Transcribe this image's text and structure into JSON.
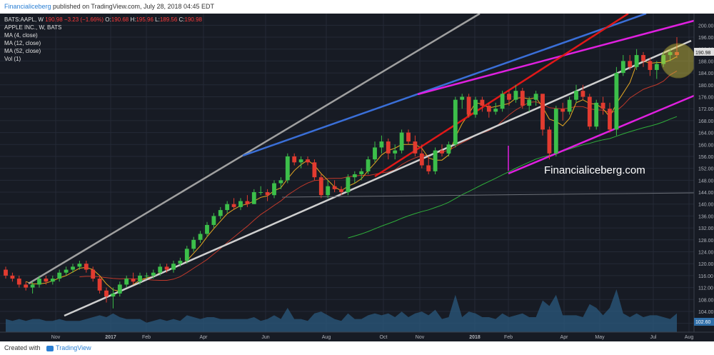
{
  "header": {
    "brand": "Financialiceberg",
    "published": " published on TradingView.com, July 28, 2018 04:45 EDT",
    "symbol_line": "BATS:AAPL, W",
    "last": "190.98",
    "change": "−3.23 (−1.66%)",
    "o": "190.68",
    "h": "195.96",
    "l": "189.56",
    "c": "190.98"
  },
  "legend": {
    "title": "APPLE INC., W, BATS",
    "ma4": "MA (4, close)",
    "ma12": "MA (12, close)",
    "ma52": "MA (52, close)",
    "vol": "Vol (1)"
  },
  "watermark": "Financialiceberg.com",
  "footer": {
    "created": "Created with",
    "tv": "TradingView"
  },
  "price_tags": {
    "last": "190.98",
    "volume": "102.60"
  },
  "chart_data": {
    "type": "candlestick",
    "title": "APPLE INC., W, BATS",
    "ylim": [
      98,
      202
    ],
    "y_ticks": [
      100,
      104,
      108,
      112,
      116,
      120,
      124,
      128,
      132,
      136,
      140,
      144,
      148,
      152,
      156,
      160,
      164,
      168,
      172,
      176,
      180,
      184,
      188,
      192,
      196,
      200
    ],
    "x_ticks": [
      "Nov",
      "2017",
      "Feb",
      "Apr",
      "Jun",
      "Aug",
      "Oct",
      "Nov",
      "2018",
      "Feb",
      "Apr",
      "May",
      "Jul",
      "Aug"
    ],
    "candles": [
      [
        118,
        119,
        115,
        116
      ],
      [
        116,
        117,
        114,
        115
      ],
      [
        115,
        116,
        112,
        113
      ],
      [
        113,
        114,
        111,
        112
      ],
      [
        112,
        114,
        110,
        113
      ],
      [
        113,
        116,
        112,
        115
      ],
      [
        115,
        116,
        113,
        114
      ],
      [
        114,
        116,
        113,
        115
      ],
      [
        115,
        118,
        114,
        117
      ],
      [
        117,
        119,
        116,
        118
      ],
      [
        118,
        120,
        117,
        119
      ],
      [
        119,
        121,
        118,
        120
      ],
      [
        120,
        121,
        117,
        118
      ],
      [
        118,
        119,
        114,
        115
      ],
      [
        115,
        116,
        110,
        111
      ],
      [
        111,
        112,
        107,
        109
      ],
      [
        109,
        112,
        105,
        110
      ],
      [
        110,
        114,
        109,
        113
      ],
      [
        113,
        116,
        112,
        115
      ],
      [
        115,
        117,
        113,
        114
      ],
      [
        114,
        117,
        113,
        116
      ],
      [
        116,
        117,
        115,
        116
      ],
      [
        116,
        118,
        115,
        117
      ],
      [
        117,
        120,
        116,
        119
      ],
      [
        119,
        120,
        117,
        118
      ],
      [
        118,
        121,
        117,
        120
      ],
      [
        120,
        122,
        119,
        121
      ],
      [
        121,
        126,
        120,
        125
      ],
      [
        125,
        129,
        124,
        128
      ],
      [
        128,
        131,
        127,
        130
      ],
      [
        130,
        134,
        129,
        133
      ],
      [
        133,
        137,
        132,
        136
      ],
      [
        136,
        139,
        135,
        138
      ],
      [
        138,
        141,
        137,
        140
      ],
      [
        140,
        142,
        138,
        139
      ],
      [
        139,
        142,
        138,
        141
      ],
      [
        141,
        143,
        139,
        140
      ],
      [
        140,
        145,
        140,
        144
      ],
      [
        144,
        146,
        143,
        144
      ],
      [
        144,
        145,
        141,
        143
      ],
      [
        143,
        148,
        142,
        147
      ],
      [
        147,
        149,
        145,
        148
      ],
      [
        148,
        157,
        147,
        156
      ],
      [
        156,
        157,
        153,
        154
      ],
      [
        154,
        156,
        152,
        155
      ],
      [
        155,
        156,
        153,
        154
      ],
      [
        154,
        155,
        148,
        149
      ],
      [
        149,
        150,
        142,
        143
      ],
      [
        143,
        148,
        142,
        146
      ],
      [
        146,
        148,
        144,
        145
      ],
      [
        145,
        146,
        143,
        144
      ],
      [
        144,
        150,
        143,
        149
      ],
      [
        149,
        151,
        147,
        150
      ],
      [
        150,
        152,
        148,
        151
      ],
      [
        151,
        156,
        150,
        155
      ],
      [
        155,
        161,
        154,
        159
      ],
      [
        159,
        163,
        157,
        161
      ],
      [
        161,
        162,
        155,
        157
      ],
      [
        157,
        160,
        155,
        158
      ],
      [
        158,
        165,
        157,
        164
      ],
      [
        164,
        165,
        160,
        161
      ],
      [
        161,
        163,
        156,
        157
      ],
      [
        157,
        160,
        152,
        153
      ],
      [
        153,
        156,
        150,
        151
      ],
      [
        151,
        159,
        150,
        158
      ],
      [
        158,
        160,
        156,
        157
      ],
      [
        157,
        161,
        156,
        160
      ],
      [
        160,
        176,
        159,
        175
      ],
      [
        175,
        177,
        172,
        176
      ],
      [
        176,
        177,
        169,
        170
      ],
      [
        170,
        176,
        169,
        175
      ],
      [
        175,
        176,
        171,
        173
      ],
      [
        173,
        174,
        169,
        171
      ],
      [
        171,
        174,
        170,
        172
      ],
      [
        172,
        178,
        171,
        177
      ],
      [
        177,
        178,
        173,
        175
      ],
      [
        175,
        180,
        174,
        178
      ],
      [
        178,
        179,
        172,
        173
      ],
      [
        173,
        176,
        171,
        175
      ],
      [
        175,
        178,
        173,
        177
      ],
      [
        177,
        177,
        163,
        165
      ],
      [
        165,
        166,
        155,
        157
      ],
      [
        157,
        173,
        156,
        172
      ],
      [
        172,
        174,
        168,
        171
      ],
      [
        171,
        176,
        170,
        175
      ],
      [
        175,
        180,
        174,
        178
      ],
      [
        178,
        180,
        175,
        176
      ],
      [
        176,
        177,
        165,
        166
      ],
      [
        166,
        175,
        165,
        174
      ],
      [
        174,
        176,
        170,
        172
      ],
      [
        172,
        174,
        164,
        165
      ],
      [
        165,
        186,
        163,
        184
      ],
      [
        184,
        190,
        183,
        188
      ],
      [
        188,
        190,
        185,
        186
      ],
      [
        186,
        192,
        185,
        190
      ],
      [
        190,
        191,
        186,
        188
      ],
      [
        188,
        189,
        183,
        185
      ],
      [
        185,
        188,
        182,
        187
      ],
      [
        187,
        191,
        186,
        190
      ],
      [
        190,
        192,
        188,
        191
      ],
      [
        191,
        196,
        189,
        190
      ]
    ],
    "volume_note": "volume histogram shown beneath price"
  }
}
